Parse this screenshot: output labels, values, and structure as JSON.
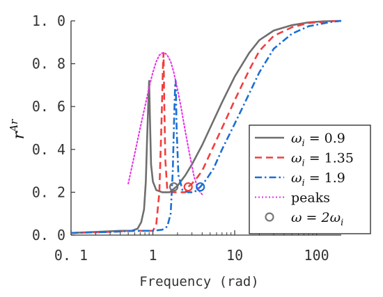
{
  "chart_data": {
    "type": "line",
    "xlabel": "Frequency (rad)",
    "ylabel": "r^Ar",
    "xscale": "log",
    "xlim": [
      0.1,
      200
    ],
    "ylim": [
      0,
      1.0
    ],
    "x_ticks": [
      0.1,
      1,
      10,
      100
    ],
    "x_tick_labels": [
      "0. 1",
      "1",
      "10",
      "100"
    ],
    "y_ticks": [
      0,
      0.2,
      0.4,
      0.6,
      0.8,
      1.0
    ],
    "y_tick_labels": [
      "0. 0",
      "0. 2",
      "0. 4",
      "0. 6",
      "0. 8",
      "1. 0"
    ],
    "grid": false,
    "legend_position": "right",
    "series": [
      {
        "name": "ω_i = 0.9",
        "label_main": "ω",
        "label_sub": "i",
        "label_rest": " = 0.9",
        "color": "#6e6e6e",
        "dash": "solid",
        "x": [
          0.1,
          0.2,
          0.4,
          0.55,
          0.65,
          0.72,
          0.78,
          0.82,
          0.85,
          0.88,
          0.9,
          0.92,
          0.95,
          1.0,
          1.1,
          1.3,
          1.6,
          2.0,
          2.5,
          3.0,
          4.0,
          5.0,
          7.0,
          10.0,
          15.0,
          20.0,
          30.0,
          50.0,
          80.0,
          120.0,
          200.0
        ],
        "y": [
          0.01,
          0.015,
          0.02,
          0.02,
          0.03,
          0.06,
          0.12,
          0.25,
          0.45,
          0.62,
          0.72,
          0.55,
          0.33,
          0.25,
          0.21,
          0.2,
          0.2,
          0.23,
          0.28,
          0.33,
          0.42,
          0.5,
          0.62,
          0.74,
          0.85,
          0.91,
          0.955,
          0.98,
          0.993,
          0.998,
          1.0
        ]
      },
      {
        "name": "ω_i = 1.35",
        "label_main": "ω",
        "label_sub": "i",
        "label_rest": " = 1.35",
        "color": "#f03e3e",
        "dash": "dashed",
        "x": [
          0.1,
          0.3,
          0.6,
          0.8,
          1.0,
          1.1,
          1.2,
          1.28,
          1.33,
          1.35,
          1.38,
          1.42,
          1.5,
          1.7,
          2.0,
          2.5,
          2.7,
          3.0,
          3.5,
          4.0,
          5.0,
          7.0,
          10.0,
          15.0,
          20.0,
          30.0,
          50.0,
          80.0,
          150.0,
          200.0
        ],
        "y": [
          0.01,
          0.015,
          0.02,
          0.02,
          0.02,
          0.05,
          0.2,
          0.55,
          0.8,
          0.85,
          0.6,
          0.35,
          0.21,
          0.2,
          0.2,
          0.2,
          0.225,
          0.24,
          0.27,
          0.3,
          0.38,
          0.5,
          0.63,
          0.77,
          0.86,
          0.93,
          0.97,
          0.99,
          0.998,
          1.0
        ]
      },
      {
        "name": "ω_i = 1.9",
        "label_main": "ω",
        "label_sub": "i",
        "label_rest": " = 1.9",
        "color": "#1a6fd4",
        "dash": "dashdot",
        "x": [
          0.1,
          0.3,
          0.6,
          1.0,
          1.3,
          1.5,
          1.65,
          1.75,
          1.82,
          1.87,
          1.9,
          1.95,
          2.05,
          2.3,
          2.7,
          3.2,
          3.8,
          4.5,
          5.5,
          7.0,
          10.0,
          15.0,
          20.0,
          30.0,
          50.0,
          80.0,
          150.0,
          200.0
        ],
        "y": [
          0.01,
          0.015,
          0.02,
          0.02,
          0.025,
          0.04,
          0.1,
          0.3,
          0.55,
          0.7,
          0.72,
          0.5,
          0.28,
          0.21,
          0.2,
          0.2,
          0.225,
          0.26,
          0.31,
          0.4,
          0.52,
          0.66,
          0.76,
          0.87,
          0.94,
          0.975,
          0.995,
          1.0
        ]
      },
      {
        "name": "peaks",
        "label_main": "peaks",
        "label_sub": "",
        "label_rest": "",
        "color": "#e62ee6",
        "dash": "dotted",
        "x": [
          0.5,
          0.6,
          0.7,
          0.8,
          0.9,
          1.0,
          1.1,
          1.2,
          1.3,
          1.4,
          1.5,
          1.65,
          1.8,
          2.0,
          2.2,
          2.5,
          2.8,
          3.2,
          3.6,
          4.0
        ],
        "y": [
          0.24,
          0.38,
          0.5,
          0.6,
          0.69,
          0.76,
          0.81,
          0.84,
          0.85,
          0.85,
          0.84,
          0.81,
          0.76,
          0.68,
          0.6,
          0.48,
          0.38,
          0.27,
          0.21,
          0.19
        ]
      }
    ],
    "markers": {
      "name": "ω = 2ω_i",
      "label_main": "ω = 2ω",
      "label_sub": "i",
      "shape": "open-circle",
      "points": [
        {
          "x": 1.8,
          "y": 0.225,
          "color": "#6e6e6e"
        },
        {
          "x": 2.7,
          "y": 0.225,
          "color": "#f03e3e"
        },
        {
          "x": 3.8,
          "y": 0.225,
          "color": "#1a6fd4"
        }
      ]
    }
  }
}
